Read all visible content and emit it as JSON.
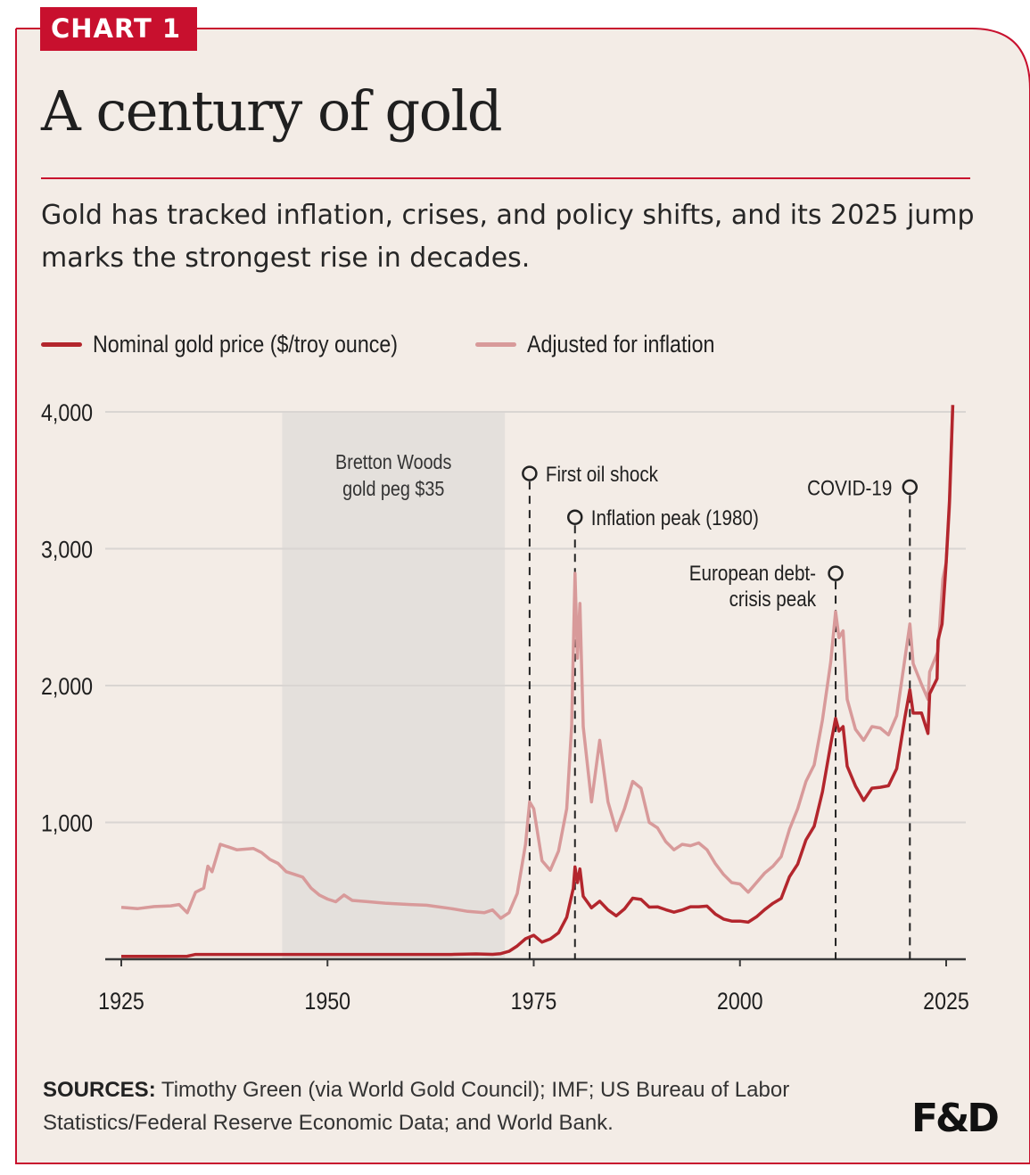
{
  "badge": "CHART 1",
  "title": "A century of gold",
  "subtitle": "Gold has tracked inflation, crises, and policy shifts, and its 2025 jump marks the strongest rise in decades.",
  "sources_label": "SOURCES:",
  "sources_text": "Timothy Green (via World Gold Council); IMF; US Bureau of Labor Statistics/Federal Reserve Economic Data; and World Bank.",
  "logo": "F&D",
  "colors": {
    "accent": "#c8102e",
    "background": "#f3ece6",
    "nominal": "#b3262d",
    "adjusted": "#d89a9a",
    "shade": "#e4e0dc"
  },
  "chart_data": {
    "type": "line",
    "title": "A century of gold",
    "xlabel": "",
    "ylabel": "",
    "xlim": [
      1925,
      2026
    ],
    "ylim": [
      0,
      4000
    ],
    "xticks": [
      1925,
      1950,
      1975,
      2000,
      2025
    ],
    "yticks": [
      1000,
      2000,
      3000,
      4000
    ],
    "ytick_labels": [
      "1,000",
      "2,000",
      "3,000",
      "4,000"
    ],
    "grid": true,
    "legend": "top-left",
    "series": [
      {
        "name": "Nominal gold price ($/troy ounce)",
        "color_key": "nominal",
        "points": [
          [
            1925,
            21
          ],
          [
            1930,
            21
          ],
          [
            1933,
            22
          ],
          [
            1934,
            35
          ],
          [
            1940,
            35
          ],
          [
            1950,
            35
          ],
          [
            1960,
            35
          ],
          [
            1965,
            35
          ],
          [
            1968,
            39
          ],
          [
            1970,
            36
          ],
          [
            1971,
            41
          ],
          [
            1972,
            58
          ],
          [
            1973,
            97
          ],
          [
            1974,
            150
          ],
          [
            1975,
            175
          ],
          [
            1976,
            125
          ],
          [
            1977,
            148
          ],
          [
            1978,
            193
          ],
          [
            1979,
            307
          ],
          [
            1979.8,
            520
          ],
          [
            1980.0,
            675
          ],
          [
            1980.3,
            560
          ],
          [
            1980.6,
            660
          ],
          [
            1981,
            460
          ],
          [
            1982,
            376
          ],
          [
            1983,
            424
          ],
          [
            1984,
            360
          ],
          [
            1985,
            317
          ],
          [
            1986,
            368
          ],
          [
            1987,
            446
          ],
          [
            1988,
            437
          ],
          [
            1989,
            381
          ],
          [
            1990,
            383
          ],
          [
            1991,
            362
          ],
          [
            1992,
            344
          ],
          [
            1993,
            360
          ],
          [
            1994,
            384
          ],
          [
            1995,
            384
          ],
          [
            1996,
            388
          ],
          [
            1997,
            331
          ],
          [
            1998,
            294
          ],
          [
            1999,
            279
          ],
          [
            2000,
            279
          ],
          [
            2001,
            271
          ],
          [
            2002,
            310
          ],
          [
            2003,
            363
          ],
          [
            2004,
            409
          ],
          [
            2005,
            444
          ],
          [
            2006,
            603
          ],
          [
            2007,
            695
          ],
          [
            2008,
            872
          ],
          [
            2009,
            972
          ],
          [
            2010,
            1225
          ],
          [
            2011,
            1570
          ],
          [
            2011.6,
            1760
          ],
          [
            2012,
            1668
          ],
          [
            2012.5,
            1700
          ],
          [
            2013,
            1411
          ],
          [
            2014,
            1266
          ],
          [
            2015,
            1160
          ],
          [
            2016,
            1250
          ],
          [
            2017,
            1257
          ],
          [
            2018,
            1268
          ],
          [
            2019,
            1392
          ],
          [
            2020,
            1770
          ],
          [
            2020.6,
            1970
          ],
          [
            2021,
            1799
          ],
          [
            2022,
            1800
          ],
          [
            2022.8,
            1650
          ],
          [
            2023,
            1940
          ],
          [
            2023.9,
            2050
          ],
          [
            2024,
            2330
          ],
          [
            2024.5,
            2450
          ],
          [
            2025,
            2900
          ],
          [
            2025.4,
            3350
          ],
          [
            2025.8,
            4050
          ]
        ]
      },
      {
        "name": "Adjusted for inflation",
        "color_key": "adjusted",
        "points": [
          [
            1925,
            380
          ],
          [
            1927,
            370
          ],
          [
            1929,
            385
          ],
          [
            1931,
            390
          ],
          [
            1932,
            400
          ],
          [
            1933,
            340
          ],
          [
            1934,
            490
          ],
          [
            1935,
            520
          ],
          [
            1935.5,
            680
          ],
          [
            1936,
            640
          ],
          [
            1937,
            840
          ],
          [
            1938,
            820
          ],
          [
            1939,
            800
          ],
          [
            1941,
            810
          ],
          [
            1942,
            780
          ],
          [
            1943,
            730
          ],
          [
            1944,
            700
          ],
          [
            1945,
            640
          ],
          [
            1946,
            620
          ],
          [
            1947,
            600
          ],
          [
            1948,
            520
          ],
          [
            1949,
            470
          ],
          [
            1950,
            440
          ],
          [
            1951,
            420
          ],
          [
            1952,
            470
          ],
          [
            1953,
            430
          ],
          [
            1955,
            420
          ],
          [
            1957,
            410
          ],
          [
            1960,
            400
          ],
          [
            1962,
            395
          ],
          [
            1965,
            370
          ],
          [
            1967,
            350
          ],
          [
            1969,
            340
          ],
          [
            1970,
            360
          ],
          [
            1971,
            300
          ],
          [
            1972,
            340
          ],
          [
            1973,
            480
          ],
          [
            1974,
            840
          ],
          [
            1974.5,
            1150
          ],
          [
            1975,
            1100
          ],
          [
            1976,
            720
          ],
          [
            1977,
            650
          ],
          [
            1978,
            790
          ],
          [
            1979,
            1100
          ],
          [
            1979.6,
            1700
          ],
          [
            1980.0,
            2820
          ],
          [
            1980.3,
            2200
          ],
          [
            1980.6,
            2600
          ],
          [
            1981,
            1700
          ],
          [
            1982,
            1150
          ],
          [
            1983,
            1600
          ],
          [
            1984,
            1150
          ],
          [
            1985,
            940
          ],
          [
            1986,
            1100
          ],
          [
            1987,
            1300
          ],
          [
            1988,
            1250
          ],
          [
            1989,
            1000
          ],
          [
            1990,
            960
          ],
          [
            1991,
            860
          ],
          [
            1992,
            800
          ],
          [
            1993,
            840
          ],
          [
            1994,
            830
          ],
          [
            1995,
            850
          ],
          [
            1996,
            800
          ],
          [
            1997,
            700
          ],
          [
            1998,
            620
          ],
          [
            1999,
            560
          ],
          [
            2000,
            550
          ],
          [
            2001,
            490
          ],
          [
            2002,
            560
          ],
          [
            2003,
            630
          ],
          [
            2004,
            680
          ],
          [
            2005,
            750
          ],
          [
            2006,
            950
          ],
          [
            2007,
            1100
          ],
          [
            2008,
            1300
          ],
          [
            2009,
            1420
          ],
          [
            2010,
            1750
          ],
          [
            2011,
            2170
          ],
          [
            2011.6,
            2540
          ],
          [
            2012,
            2350
          ],
          [
            2012.5,
            2400
          ],
          [
            2013,
            1900
          ],
          [
            2014,
            1680
          ],
          [
            2015,
            1600
          ],
          [
            2016,
            1700
          ],
          [
            2017,
            1690
          ],
          [
            2018,
            1640
          ],
          [
            2019,
            1780
          ],
          [
            2020,
            2200
          ],
          [
            2020.6,
            2450
          ],
          [
            2021,
            2160
          ],
          [
            2022,
            2010
          ],
          [
            2022.8,
            1900
          ],
          [
            2023,
            2100
          ],
          [
            2024,
            2250
          ],
          [
            2024.6,
            2780
          ],
          [
            2025,
            2900
          ],
          [
            2025.4,
            3300
          ],
          [
            2025.8,
            4050
          ]
        ]
      }
    ],
    "shaded_regions": [
      {
        "start": 1944.5,
        "end": 1971.5,
        "label_lines": [
          "Bretton Woods",
          "gold peg $35"
        ]
      }
    ],
    "annotations": [
      {
        "x": 1974.5,
        "y": 3550,
        "label_lines": [
          "First oil shock"
        ],
        "side": "right"
      },
      {
        "x": 1980.0,
        "y": 3230,
        "label_lines": [
          "Inflation peak (1980)"
        ],
        "side": "right"
      },
      {
        "x": 2011.6,
        "y": 2820,
        "label_lines": [
          "European debt-",
          "crisis peak"
        ],
        "side": "left"
      },
      {
        "x": 2020.6,
        "y": 3450,
        "label_lines": [
          "COVID-19"
        ],
        "side": "left"
      }
    ]
  }
}
